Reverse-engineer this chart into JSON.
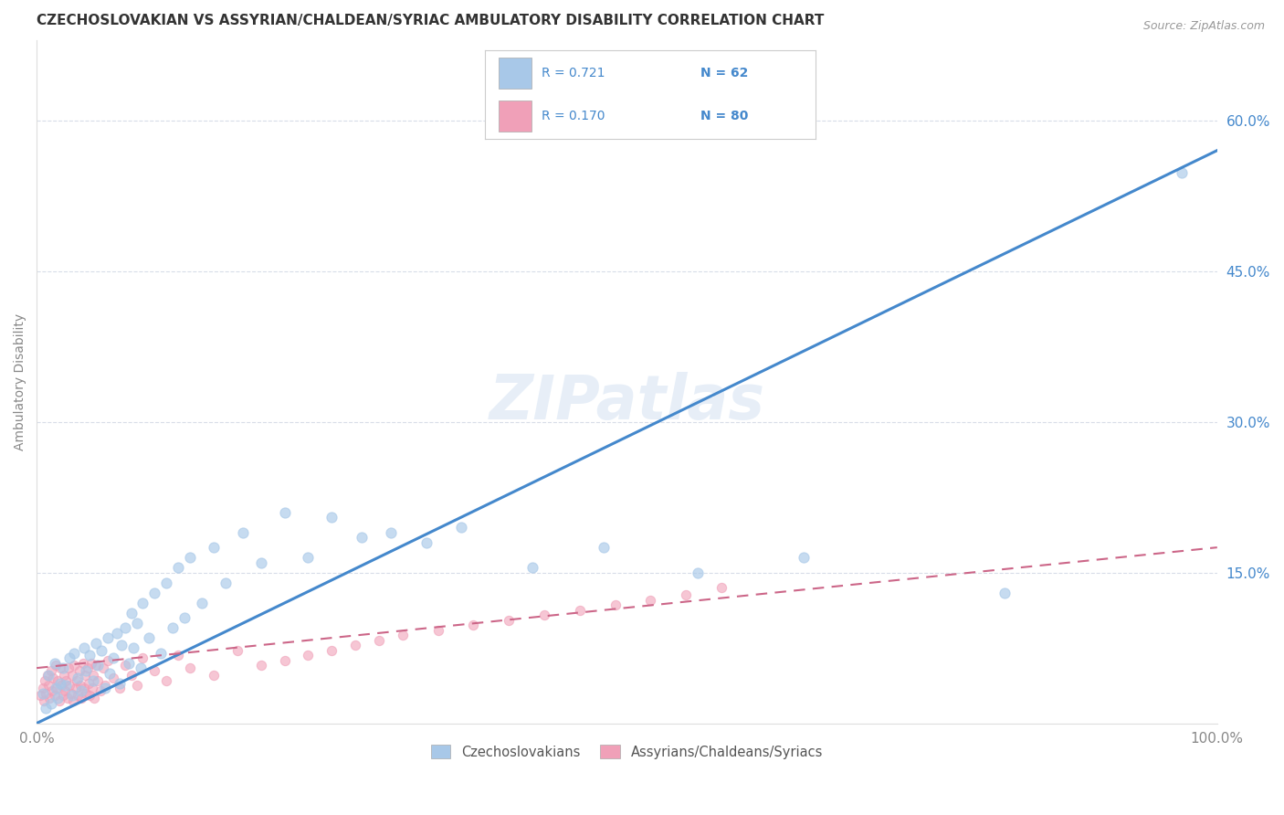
{
  "title": "CZECHOSLOVAKIAN VS ASSYRIAN/CHALDEAN/SYRIAC AMBULATORY DISABILITY CORRELATION CHART",
  "source": "Source: ZipAtlas.com",
  "ylabel": "Ambulatory Disability",
  "right_yticks": [
    "60.0%",
    "45.0%",
    "30.0%",
    "15.0%"
  ],
  "right_ytick_vals": [
    0.6,
    0.45,
    0.3,
    0.15
  ],
  "legend_r1": "R = 0.721",
  "legend_n1": "N = 62",
  "legend_r2": "R = 0.170",
  "legend_n2": "N = 80",
  "blue_color": "#a8c8e8",
  "pink_color": "#f0a0b8",
  "line_blue": "#4488cc",
  "line_pink": "#cc6688",
  "text_blue": "#4488cc",
  "background": "#ffffff",
  "grid_color": "#d8dde8",
  "watermark": "ZIPatlas",
  "blue_line_x0": 0.0,
  "blue_line_y0": 0.0,
  "blue_line_x1": 1.0,
  "blue_line_y1": 0.57,
  "pink_line_x0": 0.0,
  "pink_line_y0": 0.055,
  "pink_line_x1": 1.0,
  "pink_line_y1": 0.175,
  "xlim": [
    0,
    1.0
  ],
  "ylim": [
    0,
    0.68
  ],
  "blue_scatter_x": [
    0.005,
    0.008,
    0.01,
    0.012,
    0.015,
    0.016,
    0.018,
    0.02,
    0.022,
    0.025,
    0.028,
    0.03,
    0.032,
    0.035,
    0.038,
    0.04,
    0.042,
    0.045,
    0.048,
    0.05,
    0.052,
    0.055,
    0.058,
    0.06,
    0.062,
    0.065,
    0.068,
    0.07,
    0.072,
    0.075,
    0.078,
    0.08,
    0.082,
    0.085,
    0.088,
    0.09,
    0.095,
    0.1,
    0.105,
    0.11,
    0.115,
    0.12,
    0.125,
    0.13,
    0.14,
    0.15,
    0.16,
    0.175,
    0.19,
    0.21,
    0.23,
    0.25,
    0.275,
    0.3,
    0.33,
    0.36,
    0.42,
    0.48,
    0.56,
    0.65,
    0.82,
    0.97
  ],
  "blue_scatter_y": [
    0.03,
    0.015,
    0.048,
    0.02,
    0.06,
    0.035,
    0.025,
    0.04,
    0.055,
    0.038,
    0.065,
    0.028,
    0.07,
    0.045,
    0.032,
    0.075,
    0.052,
    0.068,
    0.042,
    0.08,
    0.058,
    0.072,
    0.035,
    0.085,
    0.05,
    0.065,
    0.09,
    0.04,
    0.078,
    0.095,
    0.06,
    0.11,
    0.075,
    0.1,
    0.055,
    0.12,
    0.085,
    0.13,
    0.07,
    0.14,
    0.095,
    0.155,
    0.105,
    0.165,
    0.12,
    0.175,
    0.14,
    0.19,
    0.16,
    0.21,
    0.165,
    0.205,
    0.185,
    0.19,
    0.18,
    0.195,
    0.155,
    0.175,
    0.15,
    0.165,
    0.13,
    0.548
  ],
  "pink_scatter_x": [
    0.003,
    0.005,
    0.006,
    0.007,
    0.008,
    0.009,
    0.01,
    0.011,
    0.012,
    0.013,
    0.014,
    0.015,
    0.016,
    0.017,
    0.018,
    0.019,
    0.02,
    0.021,
    0.022,
    0.023,
    0.024,
    0.025,
    0.026,
    0.027,
    0.028,
    0.029,
    0.03,
    0.031,
    0.032,
    0.033,
    0.034,
    0.035,
    0.036,
    0.037,
    0.038,
    0.039,
    0.04,
    0.041,
    0.042,
    0.043,
    0.044,
    0.045,
    0.046,
    0.047,
    0.048,
    0.049,
    0.05,
    0.052,
    0.054,
    0.056,
    0.058,
    0.06,
    0.065,
    0.07,
    0.075,
    0.08,
    0.085,
    0.09,
    0.1,
    0.11,
    0.12,
    0.13,
    0.15,
    0.17,
    0.19,
    0.21,
    0.23,
    0.25,
    0.27,
    0.29,
    0.31,
    0.34,
    0.37,
    0.4,
    0.43,
    0.46,
    0.49,
    0.52,
    0.55,
    0.58
  ],
  "pink_scatter_y": [
    0.028,
    0.035,
    0.022,
    0.042,
    0.03,
    0.048,
    0.038,
    0.025,
    0.052,
    0.032,
    0.045,
    0.028,
    0.058,
    0.035,
    0.042,
    0.022,
    0.055,
    0.038,
    0.028,
    0.048,
    0.032,
    0.042,
    0.025,
    0.055,
    0.038,
    0.03,
    0.048,
    0.022,
    0.058,
    0.035,
    0.042,
    0.028,
    0.052,
    0.038,
    0.025,
    0.06,
    0.035,
    0.048,
    0.03,
    0.055,
    0.04,
    0.028,
    0.06,
    0.035,
    0.048,
    0.025,
    0.058,
    0.042,
    0.032,
    0.055,
    0.038,
    0.062,
    0.045,
    0.035,
    0.058,
    0.048,
    0.038,
    0.065,
    0.052,
    0.042,
    0.068,
    0.055,
    0.048,
    0.072,
    0.058,
    0.062,
    0.068,
    0.072,
    0.078,
    0.082,
    0.088,
    0.092,
    0.098,
    0.102,
    0.108,
    0.112,
    0.118,
    0.122,
    0.128,
    0.135
  ]
}
